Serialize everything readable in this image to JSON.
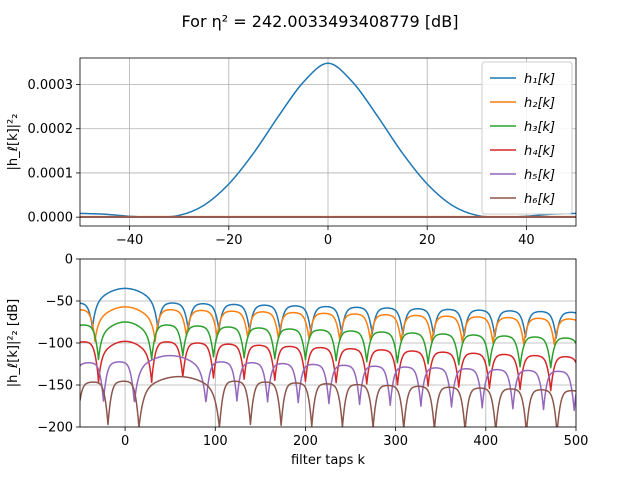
{
  "figure": {
    "title": "For η² = 242.0033493408779 [dB]"
  },
  "chart_data": [
    {
      "type": "line",
      "xlabel": "",
      "ylabel": "|h_ℓ[k]|²₂",
      "xlim": [
        -50,
        50
      ],
      "ylim": [
        -2e-05,
        0.00036
      ],
      "xticks": [
        -40,
        -20,
        0,
        20,
        40
      ],
      "xtick_labels": [
        "−40",
        "−20",
        "0",
        "20",
        "40"
      ],
      "yticks": [
        0,
        0.0001,
        0.0002,
        0.0003
      ],
      "ytick_labels": [
        "0.0000",
        "0.0001",
        "0.0002",
        "0.0003"
      ],
      "grid": true,
      "legend_position": "top-right",
      "x": [
        -50,
        -45,
        -40,
        -35,
        -30,
        -25,
        -20,
        -15,
        -10,
        -5,
        0,
        5,
        10,
        15,
        20,
        25,
        30,
        35,
        40,
        45,
        50
      ],
      "series": [
        {
          "name": "h₁[k]",
          "color": "#1f77b4",
          "values": [
            8.5e-06,
            6.5e-06,
            2e-06,
            0.0,
            4e-06,
            2.7e-05,
            7.5e-05,
            0.000145,
            0.000228,
            0.000305,
            0.000348,
            0.000305,
            0.000228,
            0.000145,
            7.5e-05,
            2.7e-05,
            4e-06,
            0.0,
            2e-06,
            6.5e-06,
            8.5e-06
          ]
        },
        {
          "name": "h₂[k]",
          "color": "#ff7f0e",
          "values": [
            1.2e-06,
            1.2e-06,
            1.2e-06,
            1.2e-06,
            1.2e-06,
            1.2e-06,
            1.2e-06,
            1.2e-06,
            1.2e-06,
            1.2e-06,
            1.2e-06,
            1.2e-06,
            1.2e-06,
            1.2e-06,
            1.2e-06,
            1.2e-06,
            1.2e-06,
            1.2e-06,
            1.2e-06,
            1.2e-06,
            1.2e-06
          ]
        },
        {
          "name": "h₃[k]",
          "color": "#2ca02c",
          "values": [
            2e-07,
            2e-07,
            2e-07,
            2e-07,
            2e-07,
            2e-07,
            2e-07,
            2e-07,
            2e-07,
            2e-07,
            2e-07,
            2e-07,
            2e-07,
            2e-07,
            2e-07,
            2e-07,
            2e-07,
            2e-07,
            2e-07,
            2e-07,
            2e-07
          ]
        },
        {
          "name": "h₄[k]",
          "color": "#d62728",
          "values": [
            1e-07,
            1e-07,
            1e-07,
            1e-07,
            1e-07,
            1e-07,
            1e-07,
            1e-07,
            1e-07,
            1e-07,
            1e-07,
            1e-07,
            1e-07,
            1e-07,
            1e-07,
            1e-07,
            1e-07,
            1e-07,
            1e-07,
            1e-07,
            1e-07
          ]
        },
        {
          "name": "h₅[k]",
          "color": "#9467bd",
          "values": [
            2e-07,
            2e-07,
            2e-07,
            2e-07,
            2e-07,
            2e-07,
            2e-07,
            2e-07,
            2e-07,
            2e-07,
            2e-07,
            2e-07,
            2e-07,
            2e-07,
            2e-07,
            2e-07,
            2e-07,
            2e-07,
            2e-07,
            2e-07,
            2e-07
          ]
        },
        {
          "name": "h₆[k]",
          "color": "#8c564b",
          "values": [
            4e-07,
            4e-07,
            4e-07,
            4e-07,
            4e-07,
            4e-07,
            4e-07,
            4e-07,
            4e-07,
            4e-07,
            4e-07,
            4e-07,
            4e-07,
            4e-07,
            4e-07,
            4e-07,
            4e-07,
            4e-07,
            4e-07,
            4e-07,
            4e-07
          ]
        }
      ]
    },
    {
      "type": "line",
      "xlabel": "filter taps k",
      "ylabel": "|h_ℓ[k]|²₂ [dB]",
      "xlim": [
        -50,
        500
      ],
      "ylim": [
        -200,
        0
      ],
      "xticks": [
        0,
        100,
        200,
        300,
        400,
        500
      ],
      "xtick_labels": [
        "0",
        "100",
        "200",
        "300",
        "400",
        "500"
      ],
      "yticks": [
        -200,
        -150,
        -100,
        -50,
        0
      ],
      "ytick_labels": [
        "−200",
        "−150",
        "−100",
        "−50",
        "0"
      ],
      "grid": true,
      "series": [
        {
          "name": "h₁[k]",
          "color": "#1f77b4",
          "mainlobe_center": 0,
          "mainlobe_half_width": 36,
          "peak_db": -35,
          "sidelobe_start_db": -52,
          "sidelobe_decay_db_per_100": 2.5,
          "sidelobe_width": 34,
          "null_depth_db": 25
        },
        {
          "name": "h₂[k]",
          "color": "#ff7f0e",
          "mainlobe_center": 0,
          "mainlobe_half_width": 34,
          "peak_db": -57,
          "sidelobe_start_db": -60,
          "sidelobe_decay_db_per_100": 2.5,
          "sidelobe_width": 34,
          "null_depth_db": 25
        },
        {
          "name": "h₃[k]",
          "color": "#2ca02c",
          "mainlobe_center": 0,
          "mainlobe_half_width": 30,
          "peak_db": -75,
          "sidelobe_start_db": -78,
          "sidelobe_decay_db_per_100": 3.5,
          "sidelobe_width": 34,
          "null_depth_db": 30
        },
        {
          "name": "h₄[k]",
          "color": "#d62728",
          "mainlobe_center": 0,
          "mainlobe_half_width": 30,
          "peak_db": -98,
          "sidelobe_start_db": -98,
          "sidelobe_decay_db_per_100": 4.0,
          "sidelobe_width": 34,
          "null_depth_db": 35
        },
        {
          "name": "h₅[k]",
          "color": "#9467bd",
          "mainlobe_center": 50,
          "mainlobe_half_width": 40,
          "peak_db": -115,
          "sidelobe_start_db": -122,
          "sidelobe_decay_db_per_100": 3.0,
          "sidelobe_width": 34,
          "null_depth_db": 40
        },
        {
          "name": "h₆[k]",
          "color": "#8c564b",
          "mainlobe_center": 60,
          "mainlobe_half_width": 45,
          "peak_db": -140,
          "sidelobe_start_db": -145,
          "sidelobe_decay_db_per_100": 3.0,
          "sidelobe_width": 34,
          "null_depth_db": 45
        }
      ]
    }
  ]
}
